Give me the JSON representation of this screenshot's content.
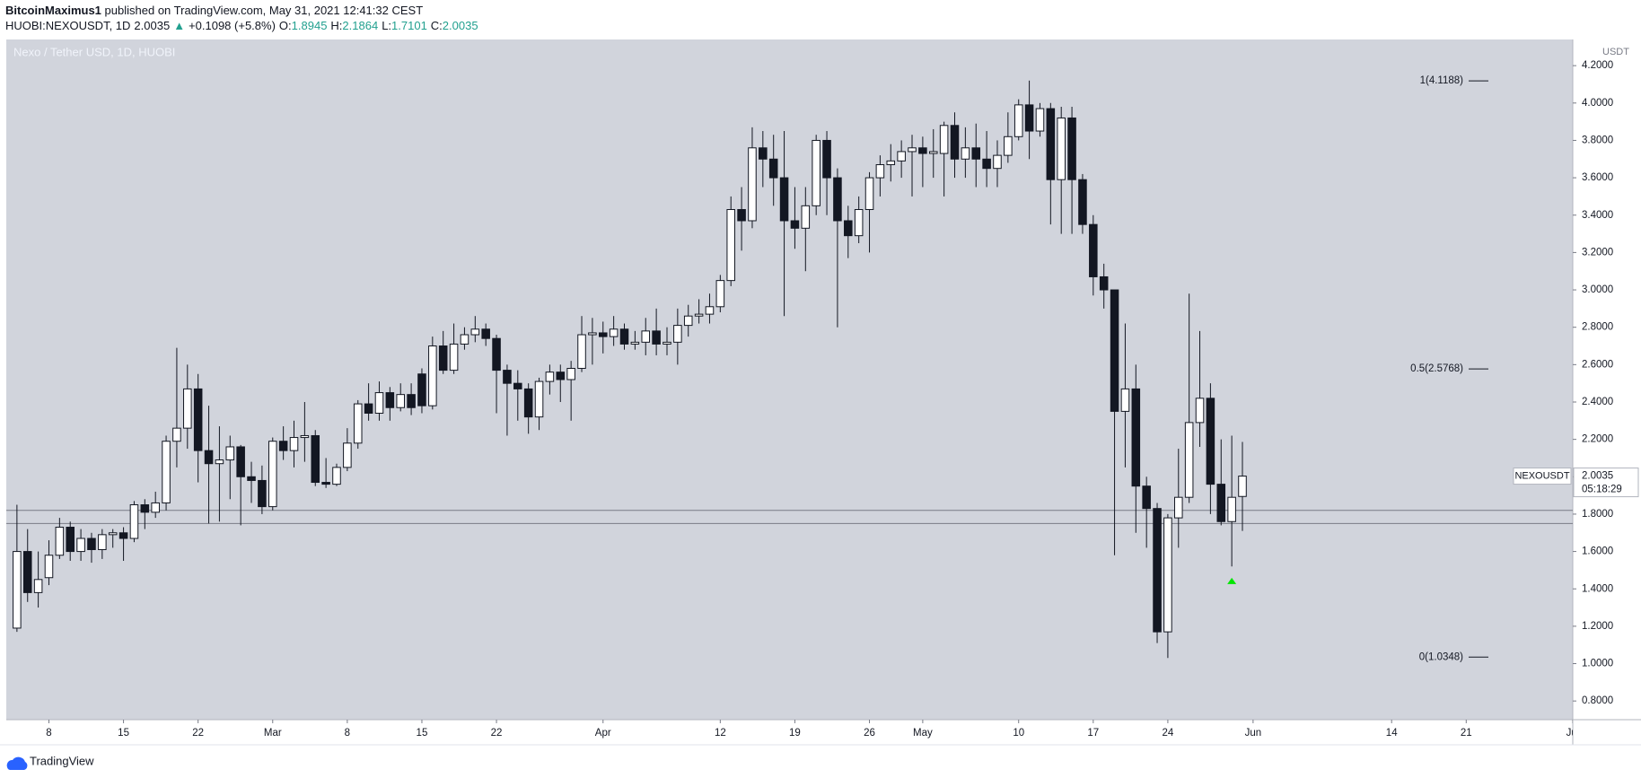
{
  "header": {
    "author": "BitcoinMaximus1",
    "published": "published on TradingView.com, May 31, 2021 12:41:32 CEST",
    "symbol": "HUOBI:NEXOUSDT, 1D",
    "last": "2.0035",
    "arrow": "▲",
    "change": "+0.1098 (+5.8%)",
    "ohlc": [
      {
        "label": "O:",
        "value": "1.8945"
      },
      {
        "label": "H:",
        "value": "2.1864"
      },
      {
        "label": "L:",
        "value": "1.7101"
      },
      {
        "label": "C:",
        "value": "2.0035"
      }
    ]
  },
  "footer": {
    "brand": "TradingView"
  },
  "chart_data": {
    "type": "candlestick",
    "title": "Nexo / Tether USD, 1D, HUOBI",
    "y_axis_label": "USDT",
    "up_color": "#ffffff",
    "down_color": "#131722",
    "border_color": "#131722",
    "background": "#d1d4dc",
    "grid": false,
    "x": [
      "02-05",
      "02-06",
      "02-07",
      "02-08",
      "02-09",
      "02-10",
      "02-11",
      "02-12",
      "02-13",
      "02-14",
      "02-15",
      "02-16",
      "02-17",
      "02-18",
      "02-19",
      "02-20",
      "02-21",
      "02-22",
      "02-23",
      "02-24",
      "02-25",
      "02-26",
      "02-27",
      "02-28",
      "03-01",
      "03-02",
      "03-03",
      "03-04",
      "03-05",
      "03-06",
      "03-07",
      "03-08",
      "03-09",
      "03-10",
      "03-11",
      "03-12",
      "03-13",
      "03-14",
      "03-15",
      "03-16",
      "03-17",
      "03-18",
      "03-19",
      "03-20",
      "03-21",
      "03-22",
      "03-23",
      "03-24",
      "03-25",
      "03-26",
      "03-27",
      "03-28",
      "03-29",
      "03-30",
      "03-31",
      "04-01",
      "04-02",
      "04-03",
      "04-04",
      "04-05",
      "04-06",
      "04-07",
      "04-08",
      "04-09",
      "04-10",
      "04-11",
      "04-12",
      "04-13",
      "04-14",
      "04-15",
      "04-16",
      "04-17",
      "04-18",
      "04-19",
      "04-20",
      "04-21",
      "04-22",
      "04-23",
      "04-24",
      "04-25",
      "04-26",
      "04-27",
      "04-28",
      "04-29",
      "04-30",
      "05-01",
      "05-02",
      "05-03",
      "05-04",
      "05-05",
      "05-06",
      "05-07",
      "05-08",
      "05-09",
      "05-10",
      "05-11",
      "05-12",
      "05-13",
      "05-14",
      "05-15",
      "05-16",
      "05-17",
      "05-18",
      "05-19",
      "05-20",
      "05-21",
      "05-22",
      "05-23",
      "05-24",
      "05-25",
      "05-26",
      "05-27",
      "05-28",
      "05-29",
      "05-30",
      "05-31"
    ],
    "open": [
      1.19,
      1.6,
      1.38,
      1.46,
      1.58,
      1.73,
      1.6,
      1.67,
      1.61,
      1.69,
      1.7,
      1.67,
      1.85,
      1.81,
      1.86,
      2.19,
      2.26,
      2.47,
      2.14,
      2.07,
      2.09,
      2.16,
      2.0,
      1.98,
      1.84,
      2.19,
      2.14,
      2.21,
      2.22,
      1.97,
      1.96,
      2.05,
      2.18,
      2.39,
      2.34,
      2.45,
      2.37,
      2.44,
      2.55,
      2.38,
      2.7,
      2.57,
      2.71,
      2.76,
      2.79,
      2.74,
      2.57,
      2.5,
      2.47,
      2.32,
      2.51,
      2.56,
      2.52,
      2.58,
      2.76,
      2.77,
      2.75,
      2.79,
      2.71,
      2.72,
      2.78,
      2.71,
      2.72,
      2.81,
      2.86,
      2.87,
      2.91,
      3.05,
      3.43,
      3.37,
      3.76,
      3.7,
      3.6,
      3.37,
      3.33,
      3.45,
      3.8,
      3.6,
      3.37,
      3.29,
      3.43,
      3.6,
      3.67,
      3.69,
      3.74,
      3.76,
      3.73,
      3.73,
      3.88,
      3.7,
      3.76,
      3.7,
      3.65,
      3.72,
      3.82,
      3.99,
      3.85,
      3.97,
      3.59,
      3.92,
      3.59,
      3.35,
      3.07,
      3.0,
      2.35,
      2.47,
      1.95,
      1.83,
      1.17,
      1.78,
      1.89,
      2.29,
      2.42,
      1.96,
      1.76,
      1.8945
    ],
    "high": [
      1.85,
      1.72,
      1.6,
      1.66,
      1.78,
      1.76,
      1.72,
      1.7,
      1.72,
      1.72,
      1.73,
      1.87,
      1.88,
      1.92,
      2.22,
      2.69,
      2.6,
      2.55,
      2.38,
      2.27,
      2.22,
      2.17,
      2.08,
      2.06,
      2.21,
      2.27,
      2.3,
      2.4,
      2.25,
      2.1,
      2.07,
      2.26,
      2.41,
      2.5,
      2.51,
      2.48,
      2.5,
      2.5,
      2.58,
      2.75,
      2.78,
      2.82,
      2.8,
      2.86,
      2.82,
      2.76,
      2.6,
      2.57,
      2.5,
      2.53,
      2.6,
      2.6,
      2.62,
      2.86,
      2.85,
      2.83,
      2.86,
      2.82,
      2.78,
      2.85,
      2.9,
      2.8,
      2.9,
      2.92,
      2.95,
      2.98,
      3.08,
      3.5,
      3.55,
      3.87,
      3.85,
      3.83,
      3.85,
      3.55,
      3.55,
      3.83,
      3.85,
      3.65,
      3.45,
      3.5,
      3.63,
      3.72,
      3.78,
      3.8,
      3.83,
      3.82,
      3.86,
      3.9,
      3.95,
      3.87,
      3.89,
      3.85,
      3.8,
      3.95,
      4.02,
      4.12,
      4.0,
      4.0,
      3.98,
      3.98,
      3.62,
      3.4,
      3.14,
      3.0,
      2.82,
      2.6,
      2.0,
      1.86,
      1.8,
      2.15,
      2.98,
      2.78,
      2.5,
      2.2,
      2.22,
      2.1864
    ],
    "low": [
      1.17,
      1.33,
      1.3,
      1.42,
      1.56,
      1.55,
      1.55,
      1.54,
      1.56,
      1.62,
      1.55,
      1.65,
      1.72,
      1.78,
      1.82,
      2.05,
      2.15,
      1.97,
      1.75,
      1.76,
      1.88,
      1.74,
      1.86,
      1.8,
      1.82,
      2.09,
      2.05,
      2.08,
      1.95,
      1.94,
      1.95,
      2.03,
      2.15,
      2.3,
      2.3,
      2.3,
      2.35,
      2.33,
      2.34,
      2.36,
      2.55,
      2.55,
      2.68,
      2.72,
      2.7,
      2.34,
      2.22,
      2.3,
      2.23,
      2.25,
      2.44,
      2.4,
      2.3,
      2.56,
      2.6,
      2.66,
      2.7,
      2.68,
      2.68,
      2.65,
      2.65,
      2.65,
      2.6,
      2.75,
      2.82,
      2.82,
      2.88,
      3.02,
      3.21,
      3.33,
      3.55,
      3.45,
      2.86,
      3.22,
      3.1,
      3.4,
      3.4,
      2.8,
      3.17,
      3.25,
      3.2,
      3.5,
      3.58,
      3.6,
      3.5,
      3.55,
      3.6,
      3.5,
      3.6,
      3.6,
      3.55,
      3.55,
      3.55,
      3.68,
      3.8,
      3.7,
      3.82,
      3.35,
      3.3,
      3.3,
      3.3,
      2.97,
      2.9,
      1.58,
      2.05,
      1.7,
      1.62,
      1.11,
      1.03,
      1.62,
      1.86,
      2.16,
      1.8,
      1.74,
      1.52,
      1.7101
    ],
    "close": [
      1.6,
      1.38,
      1.45,
      1.58,
      1.73,
      1.6,
      1.67,
      1.61,
      1.69,
      1.7,
      1.67,
      1.85,
      1.81,
      1.86,
      2.19,
      2.26,
      2.47,
      2.14,
      2.07,
      2.09,
      2.16,
      2.0,
      1.98,
      1.84,
      2.19,
      2.14,
      2.21,
      2.22,
      1.97,
      1.96,
      2.05,
      2.18,
      2.39,
      2.34,
      2.45,
      2.37,
      2.44,
      2.37,
      2.38,
      2.7,
      2.57,
      2.71,
      2.76,
      2.79,
      2.74,
      2.57,
      2.5,
      2.47,
      2.32,
      2.51,
      2.56,
      2.52,
      2.58,
      2.76,
      2.77,
      2.75,
      2.79,
      2.71,
      2.72,
      2.78,
      2.71,
      2.72,
      2.81,
      2.86,
      2.87,
      2.91,
      3.05,
      3.43,
      3.37,
      3.76,
      3.7,
      3.6,
      3.37,
      3.33,
      3.45,
      3.8,
      3.6,
      3.37,
      3.29,
      3.43,
      3.6,
      3.67,
      3.69,
      3.74,
      3.76,
      3.73,
      3.74,
      3.88,
      3.7,
      3.76,
      3.7,
      3.65,
      3.72,
      3.82,
      3.99,
      3.85,
      3.97,
      3.59,
      3.92,
      3.59,
      3.35,
      3.07,
      3.0,
      2.35,
      2.47,
      1.95,
      1.83,
      1.17,
      1.78,
      1.89,
      2.29,
      2.42,
      1.96,
      1.76,
      1.89,
      2.0035
    ],
    "xlim": [
      "02-04",
      "07-01"
    ],
    "xticks": [
      {
        "value": "02-08",
        "label": "8"
      },
      {
        "value": "02-15",
        "label": "15"
      },
      {
        "value": "02-22",
        "label": "22"
      },
      {
        "value": "03-01",
        "label": "Mar"
      },
      {
        "value": "03-08",
        "label": "8"
      },
      {
        "value": "03-15",
        "label": "15"
      },
      {
        "value": "03-22",
        "label": "22"
      },
      {
        "value": "04-01",
        "label": "Apr"
      },
      {
        "value": "04-12",
        "label": "12"
      },
      {
        "value": "04-19",
        "label": "19"
      },
      {
        "value": "04-26",
        "label": "26"
      },
      {
        "value": "05-01",
        "label": "May"
      },
      {
        "value": "05-10",
        "label": "10"
      },
      {
        "value": "05-17",
        "label": "17"
      },
      {
        "value": "05-24",
        "label": "24"
      },
      {
        "value": "06-01",
        "label": "Jun"
      },
      {
        "value": "06-14",
        "label": "14"
      },
      {
        "value": "06-21",
        "label": "21"
      },
      {
        "value": "07-01",
        "label": "Jul"
      }
    ],
    "ylim": [
      0.7,
      4.34
    ],
    "yticks": [
      {
        "value": 0.8,
        "label": "0.8000"
      },
      {
        "value": 1.0,
        "label": "1.0000"
      },
      {
        "value": 1.2,
        "label": "1.2000"
      },
      {
        "value": 1.4,
        "label": "1.4000"
      },
      {
        "value": 1.6,
        "label": "1.6000"
      },
      {
        "value": 1.8,
        "label": "1.8000"
      },
      {
        "value": 2.0,
        "label": "2.0000"
      },
      {
        "value": 2.2,
        "label": "2.2000"
      },
      {
        "value": 2.4,
        "label": "2.4000"
      },
      {
        "value": 2.6,
        "label": "2.6000"
      },
      {
        "value": 2.8,
        "label": "2.8000"
      },
      {
        "value": 3.0,
        "label": "3.0000"
      },
      {
        "value": 3.2,
        "label": "3.2000"
      },
      {
        "value": 3.4,
        "label": "3.4000"
      },
      {
        "value": 3.6,
        "label": "3.6000"
      },
      {
        "value": 3.8,
        "label": "3.8000"
      },
      {
        "value": 4.0,
        "label": "4.0000"
      },
      {
        "value": 4.2,
        "label": "4.2000"
      }
    ],
    "hlines": [
      1.82,
      1.75
    ],
    "hline_color": "#787b86",
    "annotations": [
      {
        "label": "1(4.1188)",
        "value": 4.1188
      },
      {
        "label": "0.5(2.5768)",
        "value": 2.5768
      },
      {
        "label": "0(1.0348)",
        "value": 1.0348
      }
    ],
    "markers": [
      {
        "x": "05-30",
        "value": 1.44,
        "color": "#00e600"
      }
    ],
    "last_price": {
      "symbol": "NEXOUSDT",
      "value": 2.0035,
      "countdown": "05:18:29"
    }
  }
}
